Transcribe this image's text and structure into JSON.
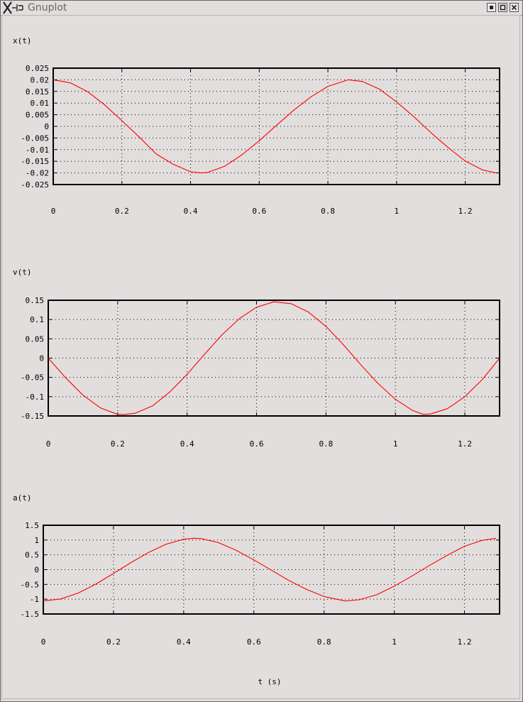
{
  "window": {
    "title": "Gnuplot",
    "buttons": [
      "minimize",
      "maximize",
      "close"
    ]
  },
  "xaxis_label": "t (s)",
  "chart_data": [
    {
      "type": "line",
      "ylabel": "x(t)",
      "xlabel": "",
      "xlim": [
        0,
        1.3
      ],
      "ylim": [
        -0.025,
        0.025
      ],
      "xticks": [
        0,
        0.2,
        0.4,
        0.6,
        0.8,
        1,
        1.2
      ],
      "xtick_labels": [
        "0",
        "0.2",
        "0.4",
        "0.6",
        "0.8",
        "1",
        "1.2"
      ],
      "yticks": [
        -0.025,
        -0.02,
        -0.015,
        -0.01,
        -0.005,
        0,
        0.005,
        0.01,
        0.015,
        0.02,
        0.025
      ],
      "ytick_labels": [
        "-0.025",
        "-0.02",
        "-0.015",
        "-0.01",
        "-0.005",
        "0",
        "0.005",
        "0.01",
        "0.015",
        "0.02",
        "0.025"
      ],
      "grid": true,
      "series": [
        {
          "color": "#ff0000",
          "x": [
            0,
            0.05,
            0.1,
            0.15,
            0.2,
            0.25,
            0.3,
            0.35,
            0.4,
            0.43,
            0.45,
            0.5,
            0.55,
            0.6,
            0.65,
            0.7,
            0.75,
            0.8,
            0.86,
            0.9,
            0.95,
            1.0,
            1.05,
            1.1,
            1.15,
            1.2,
            1.25,
            1.29
          ],
          "y": [
            0.02,
            0.0187,
            0.0149,
            0.0092,
            0.0024,
            -0.0045,
            -0.0119,
            -0.0163,
            -0.0195,
            -0.02,
            -0.0198,
            -0.0171,
            -0.0122,
            -0.0062,
            0.0004,
            0.0069,
            0.0126,
            0.0172,
            0.02,
            0.0193,
            0.016,
            0.0105,
            0.0042,
            -0.0027,
            -0.0091,
            -0.0149,
            -0.0187,
            -0.02
          ]
        }
      ]
    },
    {
      "type": "line",
      "ylabel": "v(t)",
      "xlabel": "",
      "xlim": [
        0,
        1.3
      ],
      "ylim": [
        -0.15,
        0.15
      ],
      "xticks": [
        0,
        0.2,
        0.4,
        0.6,
        0.8,
        1,
        1.2
      ],
      "xtick_labels": [
        "0",
        "0.2",
        "0.4",
        "0.6",
        "0.8",
        "1",
        "1.2"
      ],
      "yticks": [
        -0.15,
        -0.1,
        -0.05,
        0,
        0.05,
        0.1,
        0.15
      ],
      "ytick_labels": [
        "-0.15",
        "-0.1",
        "-0.05",
        "0",
        "0.05",
        "0.1",
        "0.15"
      ],
      "grid": true,
      "series": [
        {
          "color": "#ff0000",
          "x": [
            0,
            0.05,
            0.1,
            0.15,
            0.2,
            0.22,
            0.25,
            0.3,
            0.35,
            0.4,
            0.45,
            0.5,
            0.55,
            0.6,
            0.65,
            0.7,
            0.75,
            0.8,
            0.85,
            0.9,
            0.95,
            1.0,
            1.05,
            1.08,
            1.1,
            1.15,
            1.2,
            1.25,
            1.3
          ],
          "y": [
            0,
            -0.051,
            -0.096,
            -0.129,
            -0.146,
            -0.146,
            -0.143,
            -0.124,
            -0.088,
            -0.042,
            0.01,
            0.06,
            0.102,
            0.132,
            0.146,
            0.141,
            0.119,
            0.082,
            0.035,
            -0.017,
            -0.066,
            -0.107,
            -0.136,
            -0.146,
            -0.145,
            -0.131,
            -0.1,
            -0.056,
            0
          ]
        }
      ]
    },
    {
      "type": "line",
      "ylabel": "a(t)",
      "xlabel": "t (s)",
      "xlim": [
        0,
        1.3
      ],
      "ylim": [
        -1.5,
        1.5
      ],
      "xticks": [
        0,
        0.2,
        0.4,
        0.6,
        0.8,
        1,
        1.2
      ],
      "xtick_labels": [
        "0",
        "0.2",
        "0.4",
        "0.6",
        "0.8",
        "1",
        "1.2"
      ],
      "yticks": [
        -1.5,
        -1,
        -0.5,
        0,
        0.5,
        1,
        1.5
      ],
      "ytick_labels": [
        "-1.5",
        "-1",
        "-0.5",
        "0",
        "0.5",
        "1",
        "1.5"
      ],
      "grid": true,
      "series": [
        {
          "color": "#ff0000",
          "x": [
            0,
            0.05,
            0.1,
            0.15,
            0.2,
            0.25,
            0.3,
            0.35,
            0.4,
            0.43,
            0.45,
            0.5,
            0.55,
            0.6,
            0.65,
            0.7,
            0.75,
            0.8,
            0.86,
            0.9,
            0.95,
            1.0,
            1.05,
            1.1,
            1.15,
            1.2,
            1.25,
            1.29
          ],
          "y": [
            -1.06,
            -0.99,
            -0.79,
            -0.49,
            -0.13,
            0.24,
            0.58,
            0.86,
            1.03,
            1.06,
            1.05,
            0.91,
            0.65,
            0.33,
            -0.02,
            -0.37,
            -0.67,
            -0.91,
            -1.06,
            -1.02,
            -0.85,
            -0.56,
            -0.22,
            0.14,
            0.48,
            0.79,
            0.99,
            1.06
          ]
        }
      ]
    }
  ]
}
